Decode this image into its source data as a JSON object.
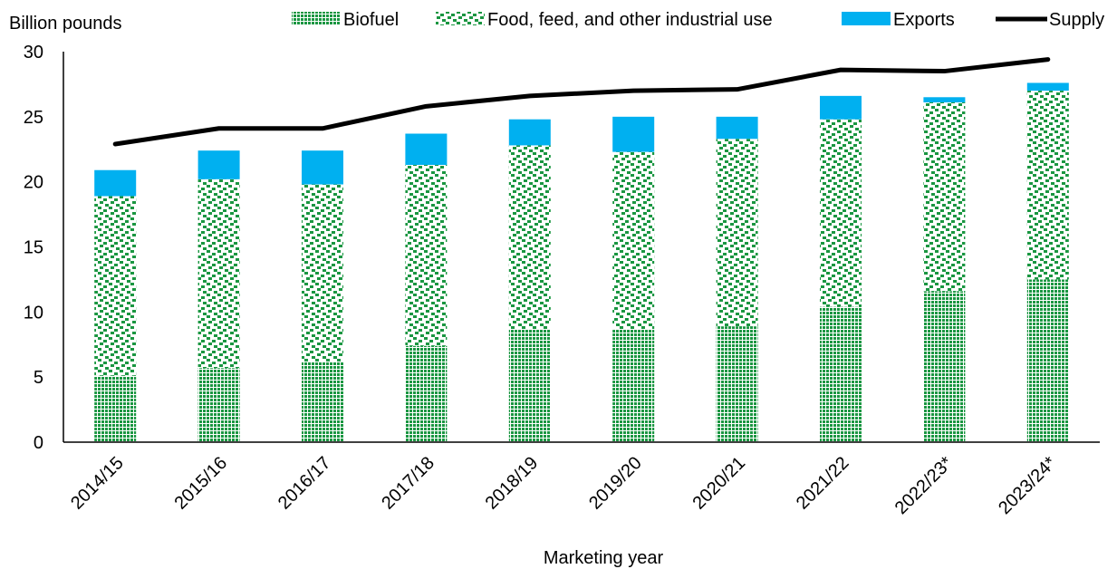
{
  "chart_data": {
    "type": "bar",
    "stacked": true,
    "ylabel": "Billion pounds",
    "xlabel": "Marketing year",
    "ylim": [
      0,
      30
    ],
    "yticks": [
      0,
      5,
      10,
      15,
      20,
      25,
      30
    ],
    "categories": [
      "2014/15",
      "2015/16",
      "2016/17",
      "2017/18",
      "2018/19",
      "2019/20",
      "2020/21",
      "2021/22",
      "2022/23*",
      "2023/24*"
    ],
    "series": [
      {
        "name": "Biofuel",
        "kind": "bar",
        "color": "#1a9641",
        "values": [
          5.1,
          5.7,
          6.2,
          7.4,
          8.7,
          8.7,
          8.9,
          10.4,
          11.6,
          12.5
        ]
      },
      {
        "name": "Food, feed, and other industrial use",
        "kind": "bar",
        "color": "#1a9641",
        "values": [
          13.8,
          14.5,
          13.6,
          13.9,
          14.1,
          13.6,
          14.4,
          14.4,
          14.5,
          14.5
        ]
      },
      {
        "name": "Exports",
        "kind": "bar",
        "color": "#00b0f0",
        "values": [
          2.0,
          2.2,
          2.6,
          2.4,
          2.0,
          2.7,
          1.7,
          1.8,
          0.4,
          0.6
        ]
      },
      {
        "name": "Supply",
        "kind": "line",
        "color": "#000000",
        "values": [
          22.9,
          24.1,
          24.1,
          25.8,
          26.6,
          27.0,
          27.1,
          28.6,
          28.5,
          29.4
        ]
      }
    ],
    "legend_position": "top",
    "grid": false
  }
}
